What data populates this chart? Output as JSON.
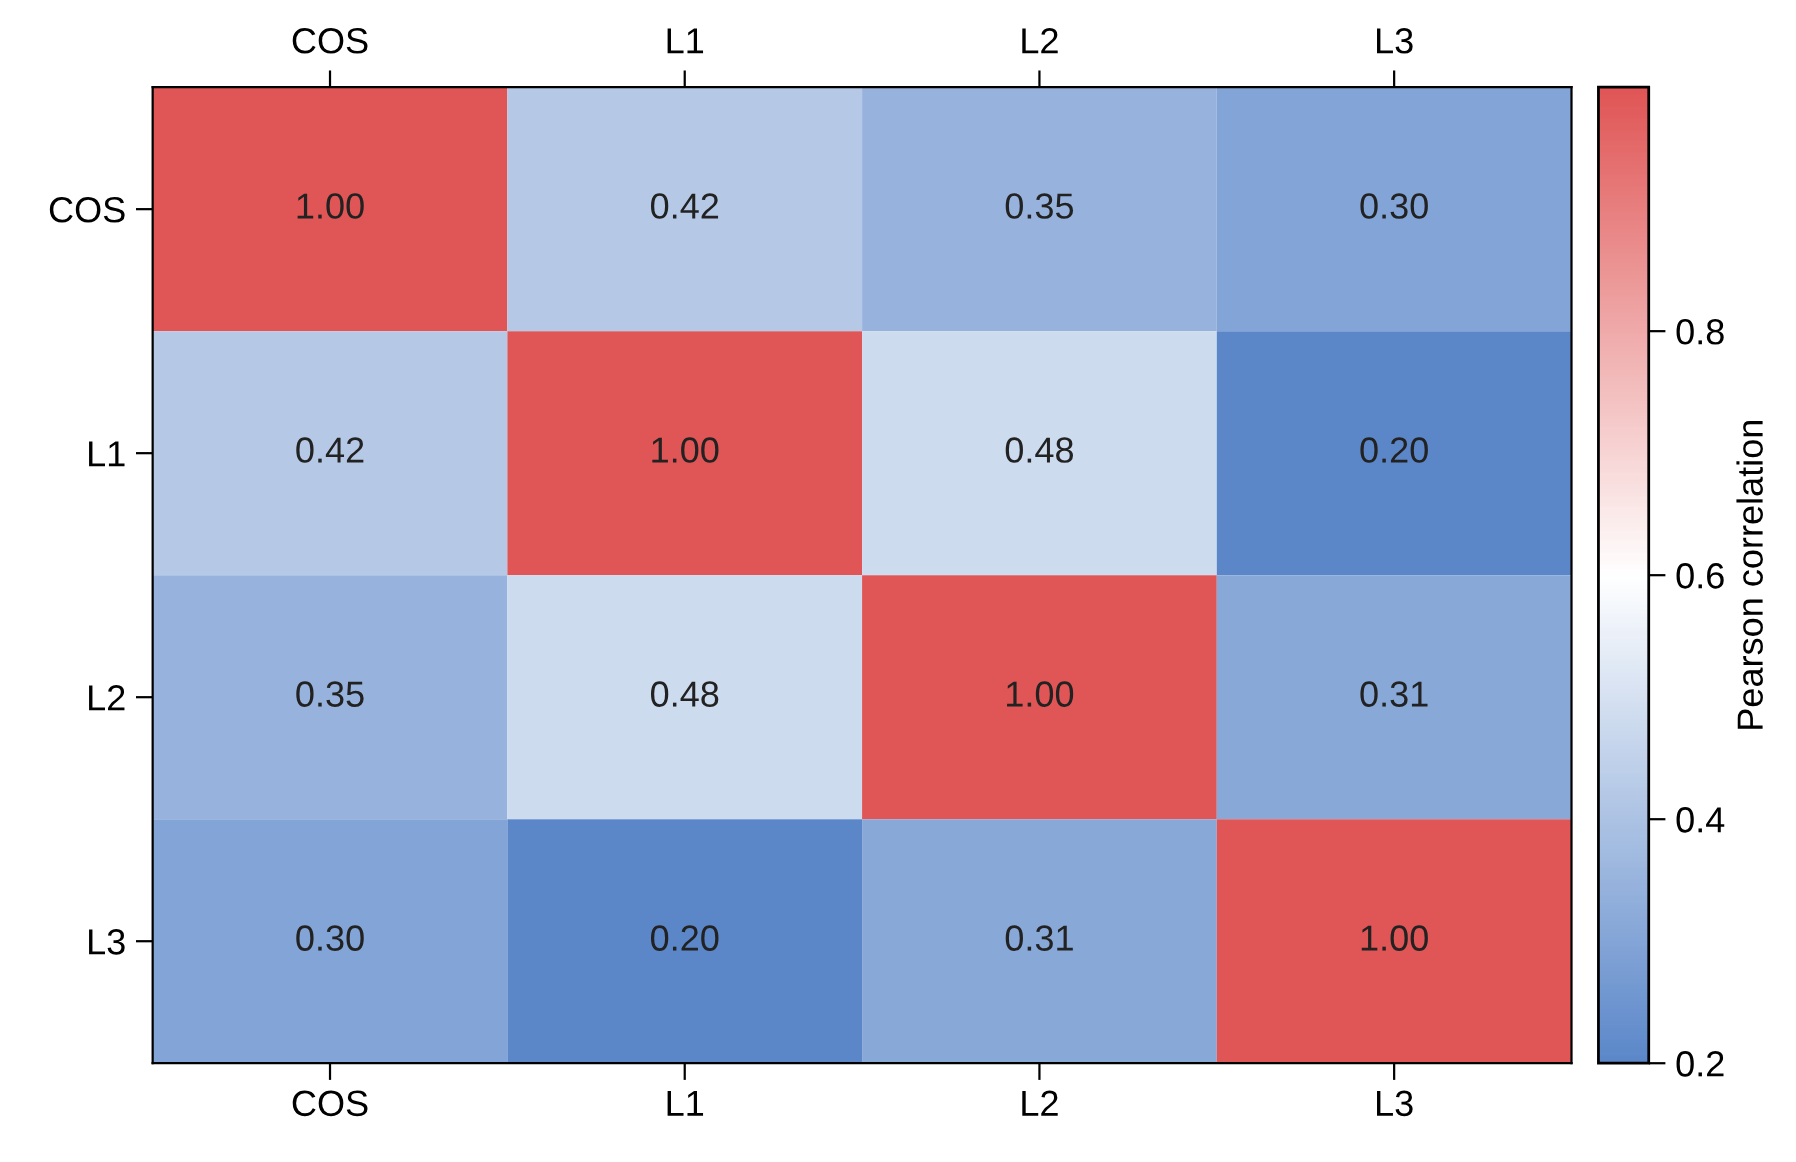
{
  "chart_data": {
    "type": "heatmap",
    "clabel": "Pearson correlation",
    "categories": [
      "COS",
      "L1",
      "L2",
      "L3"
    ],
    "y_categories": [
      "COS",
      "L1",
      "L2",
      "L3"
    ],
    "cells": [
      [
        1.0,
        0.42,
        0.35,
        0.3
      ],
      [
        0.42,
        1.0,
        0.48,
        0.2
      ],
      [
        0.35,
        0.48,
        1.0,
        0.31
      ],
      [
        0.3,
        0.2,
        0.31,
        1.0
      ]
    ],
    "cell_labels": [
      [
        "1.00",
        "0.42",
        "0.35",
        "0.30"
      ],
      [
        "0.42",
        "1.00",
        "0.48",
        "0.20"
      ],
      [
        "0.35",
        "0.48",
        "1.00",
        "0.31"
      ],
      [
        "0.30",
        "0.20",
        "0.31",
        "1.00"
      ]
    ],
    "colors": [
      "#5b87c9",
      "#ffffff",
      "#e05555"
    ],
    "clim": [
      0.2,
      1.0
    ],
    "cticks": [
      0.2,
      0.4,
      0.6,
      0.8
    ],
    "grid": false
  }
}
